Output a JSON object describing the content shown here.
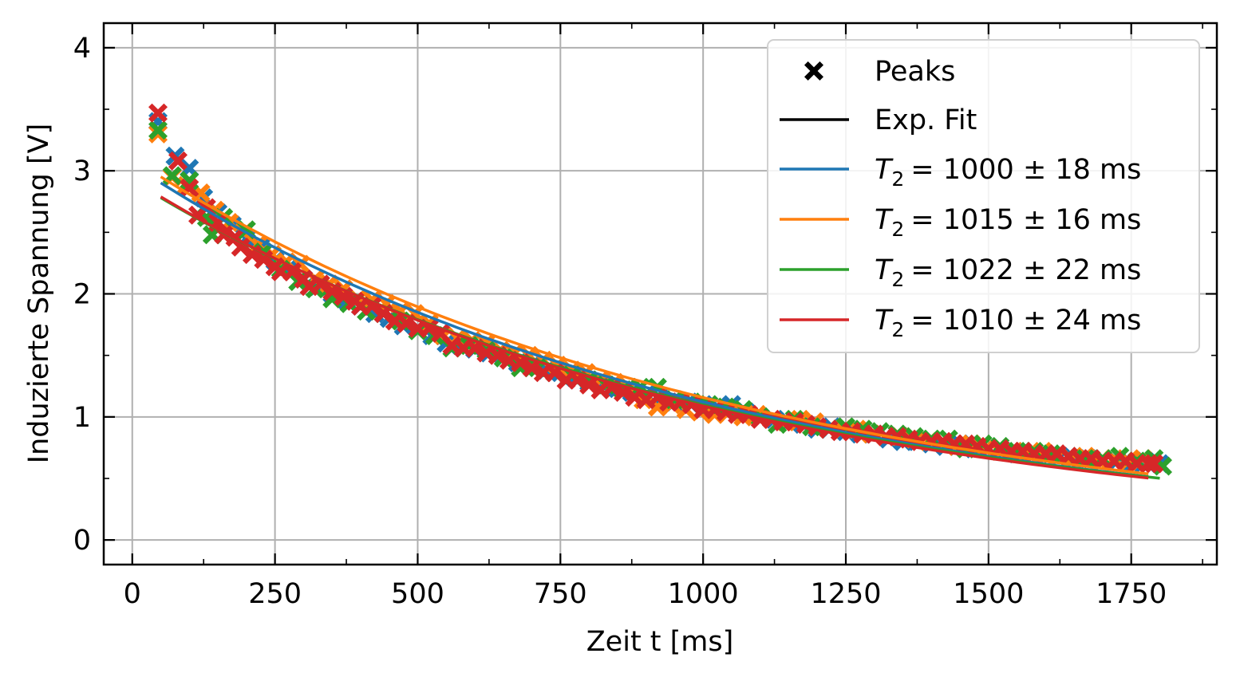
{
  "chart_data": {
    "type": "scatter",
    "title": "",
    "xlabel": "Zeit t [ms]",
    "ylabel": "Induzierte Spannung [V]",
    "xlim": [
      -50,
      1900
    ],
    "ylim": [
      -0.2,
      4.2
    ],
    "xticks": [
      0,
      250,
      500,
      750,
      1000,
      1250,
      1500,
      1750
    ],
    "xtick_labels": [
      "0",
      "250",
      "500",
      "750",
      "1000",
      "1250",
      "1500",
      "1750"
    ],
    "yticks": [
      0,
      1,
      2,
      3,
      4
    ],
    "ytick_labels": [
      "0",
      "1",
      "2",
      "3",
      "4"
    ],
    "grid": true,
    "legend_position": "top-right",
    "legend": {
      "marker_entry": "Peaks",
      "line_entry": "Exp. Fit",
      "t2_prefix": "T",
      "t2_sub": "2",
      "t2_suffixes": [
        "= 1000 ± 18 ms",
        "= 1015 ± 16 ms",
        "= 1022 ± 22 ms",
        "= 1010 ± 24 ms"
      ]
    },
    "series": [
      {
        "color": "#1f77b4",
        "fit": {
          "A": 3.05,
          "T2": 1000,
          "x_range": [
            50,
            1780
          ]
        },
        "peaks_x": [
          45,
          75,
          100,
          125,
          150,
          175,
          200,
          225,
          250,
          275,
          300,
          325,
          350,
          375,
          400,
          425,
          450,
          475,
          500,
          525,
          550,
          575,
          600,
          625,
          650,
          675,
          700,
          725,
          750,
          775,
          800,
          825,
          850,
          875,
          900,
          925,
          950,
          975,
          1000,
          1025,
          1050,
          1075,
          1100,
          1125,
          1150,
          1175,
          1200,
          1225,
          1250,
          1275,
          1300,
          1325,
          1350,
          1375,
          1400,
          1425,
          1450,
          1475,
          1500,
          1525,
          1550,
          1575,
          1600,
          1625,
          1650,
          1675,
          1700,
          1725,
          1750,
          1775,
          1800
        ],
        "peaks_y": [
          3.4,
          3.12,
          3.02,
          2.78,
          2.66,
          2.56,
          2.45,
          2.38,
          2.27,
          2.21,
          2.12,
          2.06,
          2.0,
          1.95,
          1.9,
          1.84,
          1.8,
          1.74,
          1.72,
          1.66,
          1.6,
          1.58,
          1.55,
          1.52,
          1.48,
          1.44,
          1.42,
          1.38,
          1.36,
          1.32,
          1.28,
          1.26,
          1.23,
          1.2,
          1.18,
          1.15,
          1.12,
          1.12,
          1.1,
          1.08,
          1.1,
          1.04,
          1.0,
          0.98,
          0.96,
          0.94,
          0.9,
          0.92,
          0.88,
          0.86,
          0.86,
          0.82,
          0.8,
          0.8,
          0.78,
          0.76,
          0.78,
          0.74,
          0.74,
          0.72,
          0.7,
          0.7,
          0.68,
          0.68,
          0.66,
          0.66,
          0.65,
          0.64,
          0.62,
          0.64,
          0.62
        ]
      },
      {
        "color": "#ff7f0e",
        "fit": {
          "A": 3.1,
          "T2": 1015,
          "x_range": [
            50,
            1780
          ]
        },
        "peaks_x": [
          45,
          70,
          95,
          120,
          145,
          170,
          195,
          220,
          245,
          270,
          295,
          320,
          345,
          370,
          395,
          420,
          445,
          470,
          495,
          520,
          545,
          570,
          595,
          620,
          645,
          670,
          695,
          720,
          745,
          770,
          795,
          820,
          845,
          870,
          895,
          920,
          945,
          970,
          995,
          1020,
          1045,
          1070,
          1095,
          1120,
          1145,
          1170,
          1195,
          1220,
          1245,
          1270,
          1295,
          1320,
          1345,
          1370,
          1395,
          1420,
          1445,
          1470,
          1495,
          1520,
          1545,
          1570,
          1595,
          1620,
          1645,
          1670,
          1695,
          1720,
          1745,
          1770
        ],
        "peaks_y": [
          3.3,
          2.95,
          2.88,
          2.82,
          2.68,
          2.58,
          2.5,
          2.4,
          2.32,
          2.26,
          2.24,
          2.12,
          2.08,
          2.04,
          1.96,
          1.95,
          1.92,
          1.86,
          1.84,
          1.76,
          1.66,
          1.64,
          1.62,
          1.6,
          1.54,
          1.52,
          1.5,
          1.46,
          1.42,
          1.38,
          1.36,
          1.3,
          1.28,
          1.24,
          1.14,
          1.08,
          1.1,
          1.06,
          1.04,
          1.02,
          1.04,
          1.0,
          1.02,
          0.98,
          0.96,
          0.98,
          0.96,
          0.9,
          0.9,
          0.9,
          0.86,
          0.84,
          0.84,
          0.82,
          0.8,
          0.8,
          0.76,
          0.78,
          0.74,
          0.72,
          0.72,
          0.7,
          0.72,
          0.68,
          0.66,
          0.68,
          0.64,
          0.66,
          0.64,
          0.66
        ]
      },
      {
        "color": "#2ca02c",
        "fit": {
          "A": 2.92,
          "T2": 1022,
          "x_range": [
            50,
            1800
          ]
        },
        "peaks_x": [
          45,
          70,
          100,
          130,
          140,
          160,
          200,
          230,
          260,
          290,
          320,
          350,
          380,
          410,
          440,
          470,
          500,
          530,
          560,
          590,
          620,
          650,
          680,
          710,
          740,
          770,
          800,
          830,
          860,
          890,
          920,
          950,
          980,
          1010,
          1040,
          1070,
          1100,
          1130,
          1160,
          1190,
          1220,
          1250,
          1280,
          1310,
          1340,
          1370,
          1400,
          1430,
          1460,
          1490,
          1520,
          1550,
          1580,
          1610,
          1640,
          1670,
          1700,
          1730,
          1760,
          1790,
          1805
        ],
        "peaks_y": [
          3.33,
          2.96,
          2.92,
          2.62,
          2.48,
          2.62,
          2.52,
          2.34,
          2.2,
          2.1,
          2.04,
          1.96,
          1.92,
          1.86,
          1.84,
          1.78,
          1.7,
          1.66,
          1.56,
          1.58,
          1.54,
          1.48,
          1.4,
          1.4,
          1.36,
          1.34,
          1.3,
          1.26,
          1.22,
          1.24,
          1.24,
          1.14,
          1.12,
          1.1,
          1.08,
          1.06,
          1.0,
          0.94,
          0.98,
          0.92,
          0.9,
          0.92,
          0.9,
          0.88,
          0.86,
          0.84,
          0.82,
          0.82,
          0.74,
          0.78,
          0.76,
          0.72,
          0.72,
          0.7,
          0.68,
          0.66,
          0.66,
          0.68,
          0.64,
          0.66,
          0.6
        ]
      },
      {
        "color": "#d62728",
        "fit": {
          "A": 2.93,
          "T2": 1010,
          "x_range": [
            50,
            1780
          ]
        },
        "peaks_x": [
          45,
          80,
          100,
          115,
          130,
          150,
          160,
          180,
          190,
          210,
          230,
          250,
          260,
          280,
          300,
          310,
          330,
          350,
          370,
          390,
          400,
          420,
          440,
          460,
          480,
          500,
          520,
          540,
          560,
          580,
          600,
          620,
          640,
          660,
          680,
          700,
          720,
          740,
          760,
          780,
          800,
          820,
          840,
          860,
          880,
          900,
          920,
          940,
          960,
          980,
          1000,
          1020,
          1040,
          1060,
          1080,
          1100,
          1120,
          1140,
          1160,
          1180,
          1200,
          1220,
          1240,
          1260,
          1280,
          1300,
          1320,
          1340,
          1360,
          1380,
          1400,
          1420,
          1440,
          1460,
          1480,
          1500,
          1520,
          1540,
          1560,
          1580,
          1600,
          1620,
          1640,
          1660,
          1680,
          1700,
          1720,
          1740,
          1760,
          1780,
          1790
        ],
        "peaks_y": [
          3.47,
          3.08,
          2.86,
          2.64,
          2.7,
          2.58,
          2.48,
          2.46,
          2.38,
          2.32,
          2.28,
          2.22,
          2.18,
          2.18,
          2.12,
          2.06,
          2.08,
          2.02,
          1.98,
          1.94,
          1.9,
          1.9,
          1.84,
          1.78,
          1.76,
          1.72,
          1.72,
          1.68,
          1.58,
          1.56,
          1.56,
          1.52,
          1.5,
          1.46,
          1.44,
          1.4,
          1.36,
          1.36,
          1.3,
          1.3,
          1.26,
          1.22,
          1.24,
          1.2,
          1.16,
          1.14,
          1.16,
          1.12,
          1.12,
          1.1,
          1.06,
          1.06,
          1.04,
          1.02,
          1.02,
          0.98,
          0.98,
          0.96,
          0.96,
          0.94,
          0.92,
          0.9,
          0.88,
          0.88,
          0.86,
          0.86,
          0.84,
          0.84,
          0.82,
          0.8,
          0.8,
          0.8,
          0.78,
          0.78,
          0.76,
          0.74,
          0.74,
          0.72,
          0.72,
          0.7,
          0.7,
          0.7,
          0.68,
          0.66,
          0.66,
          0.64,
          0.64,
          0.64,
          0.62,
          0.62,
          0.62
        ]
      }
    ]
  }
}
